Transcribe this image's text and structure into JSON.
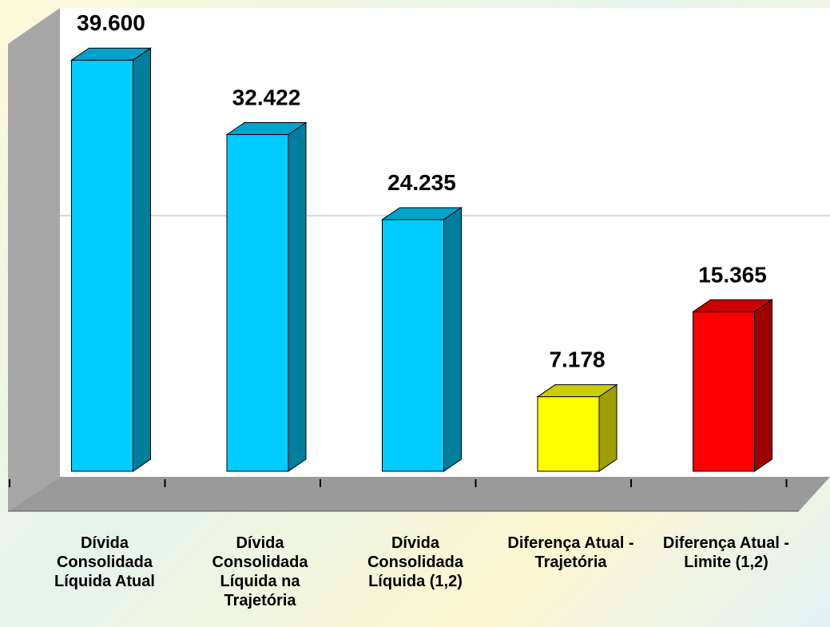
{
  "chart_data": {
    "type": "bar3d",
    "categories": [
      "Dívida Consolidada Líquida Atual",
      "Dívida Consolidada Líquida na Trajetória",
      "Dívida Consolidada Líquida (1,2)",
      "Diferença Atual - Trajetória",
      "Diferença Atual - Limite (1,2)"
    ],
    "values": [
      39600,
      32422,
      24235,
      7178,
      15365
    ],
    "value_labels": [
      "39.600",
      "32.422",
      "24.235",
      "7.178",
      "15.365"
    ],
    "colors": [
      "#00ccff",
      "#00ccff",
      "#00ccff",
      "#ffff00",
      "#ff0000"
    ],
    "ylim": [
      0,
      45000
    ],
    "yticks": [
      25000
    ],
    "grid": true
  }
}
